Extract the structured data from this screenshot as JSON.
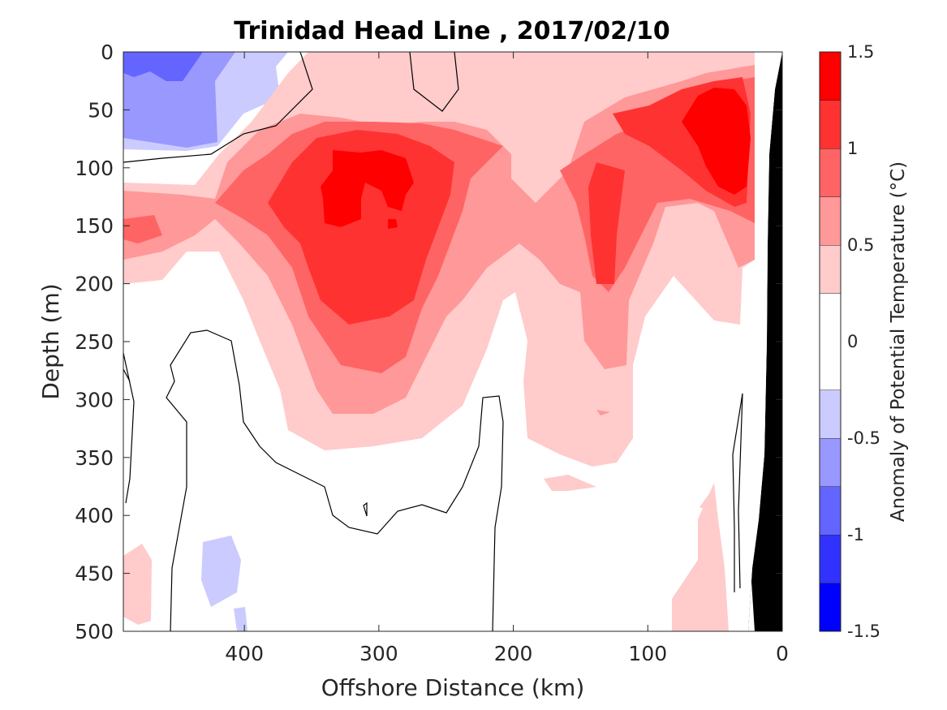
{
  "chart_data": {
    "type": "heatmap",
    "subtype": "filled-contour-section",
    "title": "Trinidad Head Line , 2017/02/10",
    "xlabel": "Offshore Distance (km)",
    "ylabel": "Depth (m)",
    "xlim": [
      490,
      0
    ],
    "x_reversed": true,
    "xticks": [
      400,
      300,
      200,
      100,
      0
    ],
    "ylim": [
      0,
      500
    ],
    "y_reversed": true,
    "yticks": [
      0,
      50,
      100,
      150,
      200,
      250,
      300,
      350,
      400,
      450,
      500
    ],
    "colorbar": {
      "label": "Anomaly of Potential Temperature (°C)",
      "ticks": [
        1.5,
        1,
        0.5,
        0,
        -0.5,
        -1,
        -1.5
      ],
      "tick_labels": [
        "1.5",
        "1",
        "0.5",
        "0",
        "-0.5",
        "-1",
        "-1.5"
      ],
      "levels": [
        -1.5,
        -1.25,
        -1.0,
        -0.75,
        -0.5,
        -0.25,
        0.25,
        0.5,
        0.75,
        1.0,
        1.25,
        1.5
      ],
      "colors": [
        "#0000ff",
        "#3232ff",
        "#6464ff",
        "#9898ff",
        "#cbcbff",
        "#ffffff",
        "#ffcbcb",
        "#ff9898",
        "#ff6464",
        "#ff3232",
        "#ff0000"
      ]
    },
    "features": {
      "warm_core": {
        "distance_km": [
          340,
          280
        ],
        "depth_m": [
          90,
          200
        ],
        "max_anomaly": 1.5
      },
      "nearshore_warm": {
        "distance_km": [
          60,
          25
        ],
        "depth_m": [
          30,
          130
        ],
        "max_anomaly": 1.5
      },
      "cold_surface_offshore": {
        "distance_km": [
          490,
          400
        ],
        "depth_m": [
          0,
          80
        ],
        "min_anomaly": -1.0
      }
    },
    "bathymetry_color": "#000000",
    "zero_contour_color": "#000000"
  }
}
